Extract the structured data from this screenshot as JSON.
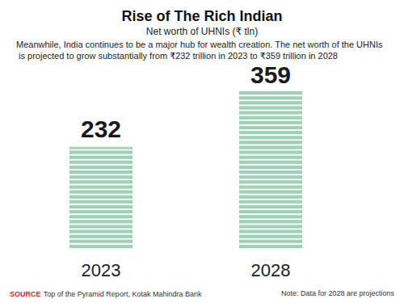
{
  "chart_data": {
    "type": "bar",
    "title": "Rise of The Rich Indian",
    "subtitle": "Net worth of UHNIs (₹ tln)",
    "description": "Meanwhile, India continues to be a major hub for wealth creation. The net worth of the UHNIs is projected to grow substantially from ₹232 trillion in 2023 to ₹359 trillion in 2028",
    "categories": [
      "2023",
      "2028"
    ],
    "values": [
      232,
      359
    ],
    "color": "#9fd3b5",
    "ylim": [
      0,
      359
    ],
    "data_labels": true,
    "tick_labels": "x",
    "grid": false,
    "source_label": "SOURCE",
    "source": "Top of the Pyramid Report, Kotak Mahindra Bank",
    "note": "Note: Data for 2028 are projections"
  }
}
